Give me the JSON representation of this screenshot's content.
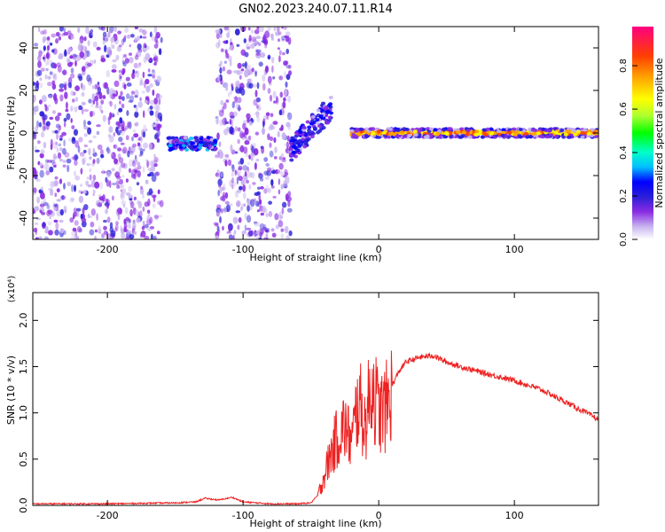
{
  "title": "GN02.2023.240.07.11.R14",
  "chart_data": [
    {
      "type": "heatmap",
      "xlabel": "Height of straight line (km)",
      "ylabel": "Frequency (Hz)",
      "xlim": [
        -255,
        162
      ],
      "ylim": [
        -50,
        50
      ],
      "xticks": [
        -200,
        -100,
        0,
        100
      ],
      "xtick_labels": [
        "-200",
        "-100",
        "0",
        "100"
      ],
      "yticks": [
        -40,
        -20,
        0,
        20,
        40
      ],
      "ytick_labels": [
        "-40",
        "-20",
        "0",
        "20",
        "40"
      ],
      "colorbar": {
        "label": "Normalized spectral amplitude",
        "range": [
          0,
          0.98
        ],
        "ticks": [
          0.0,
          0.2,
          0.4,
          0.6,
          0.8
        ],
        "tick_labels": [
          "0.0",
          "0.2",
          "0.4",
          "0.6",
          "0.8"
        ],
        "colors": [
          "#ffffff",
          "#c8b4f0",
          "#8a2be2",
          "#2a1fd8",
          "#0000ff",
          "#00bfff",
          "#00ffc8",
          "#00ff00",
          "#adff2f",
          "#ffff00",
          "#ffa500",
          "#ff4000",
          "#ff0080"
        ]
      },
      "regions": [
        {
          "x": [
            -255,
            -160
          ],
          "freq_center": 0,
          "freq_spread": 50,
          "amplitude": 0.2,
          "pattern": "broadband noise"
        },
        {
          "x": [
            -155,
            -120
          ],
          "freq_center": -5,
          "freq_spread": 3,
          "amplitude": 0.35,
          "pattern": "narrow signal"
        },
        {
          "x": [
            -120,
            -65
          ],
          "freq_center": 0,
          "freq_spread": 50,
          "amplitude": 0.2,
          "pattern": "broadband noise"
        },
        {
          "x": [
            -65,
            -35
          ],
          "freq_center": 5,
          "freq_spread": 6,
          "amplitude": 0.3,
          "pattern": "rising signal"
        },
        {
          "x": [
            -20,
            162
          ],
          "freq_center": 0,
          "freq_spread": 2,
          "amplitude": 0.85,
          "pattern": "tracked carrier"
        }
      ]
    },
    {
      "type": "line",
      "xlabel": "Height of straight line (km)",
      "ylabel": "SNR (10 * v/v)",
      "y_scale_note": "(x10⁴)",
      "xlim": [
        -255,
        162
      ],
      "ylim": [
        0,
        2.3
      ],
      "xticks": [
        -200,
        -100,
        0,
        100
      ],
      "xtick_labels": [
        "-200",
        "-100",
        "0",
        "100"
      ],
      "yticks": [
        0,
        0.5,
        1.0,
        1.5,
        2.0
      ],
      "ytick_labels": [
        "0.0",
        "0.5",
        "1.0",
        "1.5",
        "2.0"
      ],
      "series": [
        {
          "color": "#ee2222",
          "x": [
            -255,
            -200,
            -150,
            -135,
            -128,
            -118,
            -108,
            -100,
            -80,
            -60,
            -50,
            -45,
            -40,
            -35,
            -30,
            -25,
            -20,
            -15,
            -10,
            -5,
            0,
            5,
            10,
            15,
            20,
            30,
            40,
            50,
            60,
            80,
            100,
            120,
            140,
            162
          ],
          "y": [
            0.01,
            0.01,
            0.02,
            0.03,
            0.07,
            0.05,
            0.08,
            0.03,
            0.01,
            0.01,
            0.02,
            0.1,
            0.35,
            0.6,
            0.8,
            0.9,
            0.7,
            1.2,
            0.9,
            1.4,
            1.05,
            1.1,
            1.3,
            1.45,
            1.55,
            1.6,
            1.62,
            1.55,
            1.5,
            1.42,
            1.35,
            1.25,
            1.1,
            0.93
          ]
        }
      ]
    }
  ]
}
